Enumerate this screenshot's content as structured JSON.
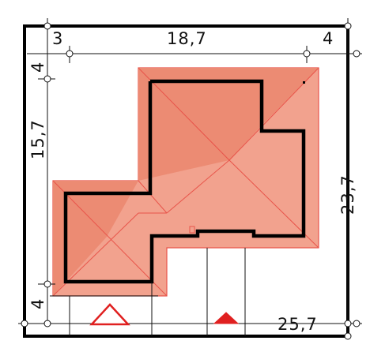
{
  "colors": {
    "plot_border": "#000000",
    "roof_light": "#f2a28e",
    "roof_dark": "#ec8b73",
    "roof_edge": "#e8544a",
    "wall": "#000000",
    "dimension_line": "#111111",
    "entry_marker": "#e02020"
  },
  "dimensions": {
    "top_left_setback": "3",
    "top_length": "18,7",
    "top_right_setback": "4",
    "left_top_setback": "4",
    "left_length": "15,7",
    "left_bottom_setback": "4",
    "right_length": "23,7",
    "bottom_length": "25,7"
  },
  "markers": {
    "pedestrian_entry": "hollow-triangle",
    "vehicle_entry": "filled-triangle"
  }
}
